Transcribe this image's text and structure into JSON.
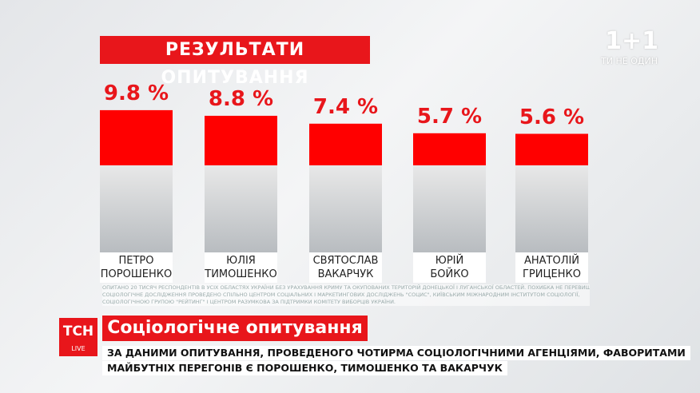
{
  "channel": {
    "logo": "1+1",
    "slogan": "ТИ НЕ ОДИН"
  },
  "chart_data": {
    "type": "bar",
    "title": "РЕЗУЛЬТАТИ ОПИТУВАННЯ",
    "categories": [
      "ПЕТРО\nПОРОШЕНКО",
      "ЮЛІЯ\nТИМОШЕНКО",
      "СВЯТОСЛАВ\nВАКАРЧУК",
      "ЮРІЙ\nБОЙКО",
      "АНАТОЛІЙ\nГРИЦЕНКО"
    ],
    "values": [
      9.8,
      8.8,
      7.4,
      5.7,
      5.6
    ],
    "value_labels": [
      "9.8 %",
      "8.8 %",
      "7.4 %",
      "5.7 %",
      "5.6 %"
    ],
    "color": "#ff0000"
  },
  "footnote": [
    "ОПИТАНО 20 ТИСЯЧ РЕСПОНДЕНТІВ В УСІХ ОБЛАСТЯХ УКРАЇНИ БЕЗ УРАХУВАННЯ КРИМУ ТА ОКУПОВАНИХ ТЕРИТОРІЙ ДОНЕЦЬКОЇ І ЛУГАНСЬКОЇ ОБЛАСТЕЙ. ПОХИБКА НЕ ПЕРЕВИЩУЄ 0,7%.",
    "СОЦІОЛОГІЧНЕ ДОСЛІДЖЕННЯ ПРОВЕДЕНО СПІЛЬНО ЦЕНТРОМ СОЦІАЛЬНИХ І МАРКЕТИНГОВИХ ДОСЛІДЖЕНЬ \"СОЦИС\", КИЇВСЬКИМ МІЖНАРОДНИМ ІНСТИТУТОМ СОЦІОЛОГІЇ,",
    "СОЦІОЛОГІЧНОЮ ГРУПОЮ \"РЕЙТИНГ\" І ЦЕНТРОМ РАЗУМКОВА ЗА ПІДТРИМКИ КОМІТЕТУ ВИБОРЦІВ УКРАЇНИ."
  ],
  "lower_third": {
    "logo": "ТСН",
    "live": "LIVE",
    "headline": "Соціологічне опитування",
    "lines": [
      "ЗА ДАНИМИ ОПИТУВАННЯ, ПРОВЕДЕНОГО ЧОТИРМА СОЦІОЛОГІЧНИМИ АГЕНЦІЯМИ, ФАВОРИТАМИ",
      "МАЙБУТНІХ ПЕРЕГОНІВ Є ПОРОШЕНКО, ТИМОШЕНКО ТА ВАКАРЧУК"
    ]
  }
}
